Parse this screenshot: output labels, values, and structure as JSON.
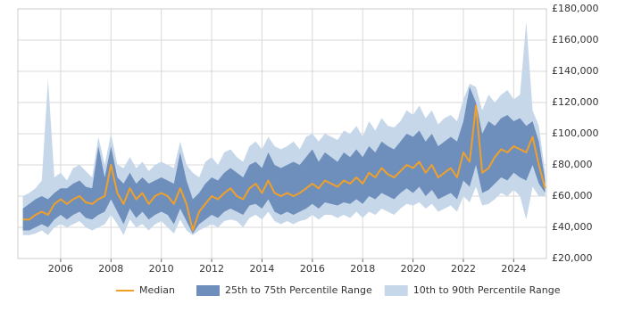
{
  "chart_data": {
    "type": "percentile-range",
    "x": [
      2004.5,
      2004.75,
      2005,
      2005.25,
      2005.5,
      2005.75,
      2006,
      2006.25,
      2006.5,
      2006.75,
      2007,
      2007.25,
      2007.5,
      2007.75,
      2008,
      2008.25,
      2008.5,
      2008.75,
      2009,
      2009.25,
      2009.5,
      2009.75,
      2010,
      2010.25,
      2010.5,
      2010.75,
      2011,
      2011.25,
      2011.5,
      2011.75,
      2012,
      2012.25,
      2012.5,
      2012.75,
      2013,
      2013.25,
      2013.5,
      2013.75,
      2014,
      2014.25,
      2014.5,
      2014.75,
      2015,
      2015.25,
      2015.5,
      2015.75,
      2016,
      2016.25,
      2016.5,
      2016.75,
      2017,
      2017.25,
      2017.5,
      2017.75,
      2018,
      2018.25,
      2018.5,
      2018.75,
      2019,
      2019.25,
      2019.5,
      2019.75,
      2020,
      2020.25,
      2020.5,
      2020.75,
      2021,
      2021.25,
      2021.5,
      2021.75,
      2022,
      2022.25,
      2022.5,
      2022.75,
      2023,
      2023.25,
      2023.5,
      2023.75,
      2024,
      2024.25,
      2024.5,
      2024.75,
      2025,
      2025.25
    ],
    "series": [
      {
        "name": "Median",
        "color": "#f0a02a",
        "values": [
          45000,
          45000,
          48000,
          50000,
          48000,
          55000,
          58000,
          55000,
          58000,
          60000,
          56000,
          55000,
          58000,
          60000,
          80000,
          62000,
          55000,
          65000,
          58000,
          62000,
          55000,
          60000,
          62000,
          60000,
          55000,
          65000,
          55000,
          38000,
          50000,
          55000,
          60000,
          58000,
          62000,
          65000,
          60000,
          58000,
          65000,
          68000,
          62000,
          70000,
          62000,
          60000,
          62000,
          60000,
          62000,
          65000,
          68000,
          65000,
          70000,
          68000,
          66000,
          70000,
          68000,
          72000,
          68000,
          75000,
          72000,
          78000,
          74000,
          72000,
          76000,
          80000,
          78000,
          82000,
          75000,
          80000,
          72000,
          75000,
          78000,
          72000,
          88000,
          82000,
          118000,
          75000,
          78000,
          85000,
          90000,
          88000,
          92000,
          90000,
          88000,
          98000,
          80000,
          65000
        ]
      }
    ],
    "bands": [
      {
        "name": "25th to 75th Percentile Range",
        "color": "#6e8fbb",
        "low": [
          38000,
          38000,
          40000,
          42000,
          40000,
          45000,
          48000,
          45000,
          48000,
          50000,
          46000,
          45000,
          48000,
          50000,
          58000,
          50000,
          42000,
          52000,
          46000,
          50000,
          45000,
          48000,
          50000,
          48000,
          42000,
          52000,
          44000,
          36000,
          42000,
          45000,
          48000,
          46000,
          50000,
          52000,
          50000,
          48000,
          54000,
          55000,
          52000,
          58000,
          50000,
          48000,
          50000,
          48000,
          50000,
          52000,
          55000,
          52000,
          56000,
          55000,
          54000,
          56000,
          55000,
          58000,
          55000,
          60000,
          58000,
          62000,
          60000,
          58000,
          62000,
          65000,
          62000,
          66000,
          60000,
          64000,
          58000,
          60000,
          62000,
          58000,
          70000,
          66000,
          80000,
          62000,
          64000,
          68000,
          72000,
          70000,
          75000,
          72000,
          70000,
          80000,
          68000,
          62000
        ],
        "high": [
          52000,
          55000,
          58000,
          60000,
          58000,
          62000,
          65000,
          65000,
          68000,
          70000,
          66000,
          65000,
          92000,
          72000,
          92000,
          72000,
          68000,
          75000,
          68000,
          72000,
          68000,
          70000,
          72000,
          70000,
          68000,
          88000,
          70000,
          58000,
          62000,
          68000,
          72000,
          70000,
          75000,
          78000,
          75000,
          72000,
          80000,
          82000,
          78000,
          88000,
          80000,
          78000,
          80000,
          82000,
          80000,
          85000,
          90000,
          82000,
          88000,
          85000,
          82000,
          88000,
          85000,
          90000,
          85000,
          92000,
          88000,
          95000,
          92000,
          90000,
          95000,
          100000,
          98000,
          102000,
          95000,
          100000,
          92000,
          95000,
          98000,
          95000,
          108000,
          130000,
          120000,
          100000,
          108000,
          105000,
          110000,
          112000,
          108000,
          110000,
          105000,
          108000,
          95000,
          70000
        ]
      },
      {
        "name": "10th to 90th Percentile Range",
        "color": "#c6d7ea",
        "low": [
          35000,
          35000,
          36000,
          38000,
          35000,
          40000,
          42000,
          40000,
          42000,
          44000,
          40000,
          38000,
          40000,
          42000,
          48000,
          42000,
          35000,
          45000,
          40000,
          42000,
          38000,
          42000,
          44000,
          40000,
          36000,
          45000,
          38000,
          35000,
          38000,
          40000,
          42000,
          40000,
          44000,
          45000,
          44000,
          40000,
          46000,
          48000,
          45000,
          50000,
          44000,
          42000,
          44000,
          42000,
          44000,
          45000,
          48000,
          45000,
          48000,
          48000,
          46000,
          48000,
          46000,
          50000,
          46000,
          50000,
          48000,
          52000,
          50000,
          48000,
          52000,
          55000,
          54000,
          56000,
          52000,
          55000,
          50000,
          52000,
          54000,
          50000,
          60000,
          56000,
          66000,
          54000,
          55000,
          58000,
          62000,
          60000,
          64000,
          60000,
          45000,
          66000,
          60000,
          60000
        ],
        "high": [
          60000,
          62000,
          65000,
          70000,
          135000,
          72000,
          75000,
          70000,
          78000,
          80000,
          76000,
          72000,
          98000,
          80000,
          100000,
          80000,
          78000,
          85000,
          78000,
          82000,
          76000,
          80000,
          82000,
          80000,
          78000,
          95000,
          80000,
          75000,
          72000,
          82000,
          85000,
          80000,
          88000,
          90000,
          85000,
          82000,
          92000,
          95000,
          90000,
          98000,
          92000,
          90000,
          92000,
          95000,
          90000,
          98000,
          100000,
          95000,
          100000,
          98000,
          96000,
          102000,
          100000,
          105000,
          98000,
          108000,
          102000,
          110000,
          105000,
          104000,
          108000,
          115000,
          112000,
          118000,
          110000,
          115000,
          106000,
          110000,
          112000,
          108000,
          122000,
          132000,
          130000,
          115000,
          125000,
          120000,
          125000,
          128000,
          122000,
          125000,
          172000,
          115000,
          105000,
          75000
        ]
      }
    ],
    "xlim": [
      2004.3,
      2025.3
    ],
    "xticks": [
      2006,
      2008,
      2010,
      2012,
      2014,
      2016,
      2018,
      2020,
      2022,
      2024
    ],
    "ylim": [
      20000,
      180000
    ],
    "yticks": [
      {
        "value": 20000,
        "label": "£20,000"
      },
      {
        "value": 40000,
        "label": "£40,000"
      },
      {
        "value": 60000,
        "label": "£60,000"
      },
      {
        "value": 80000,
        "label": "£80,000"
      },
      {
        "value": 100000,
        "label": "£100,000"
      },
      {
        "value": 120000,
        "label": "£120,000"
      },
      {
        "value": 140000,
        "label": "£140,000"
      },
      {
        "value": 160000,
        "label": "£160,000"
      },
      {
        "value": 180000,
        "label": "£180,000"
      }
    ],
    "grid": true
  }
}
